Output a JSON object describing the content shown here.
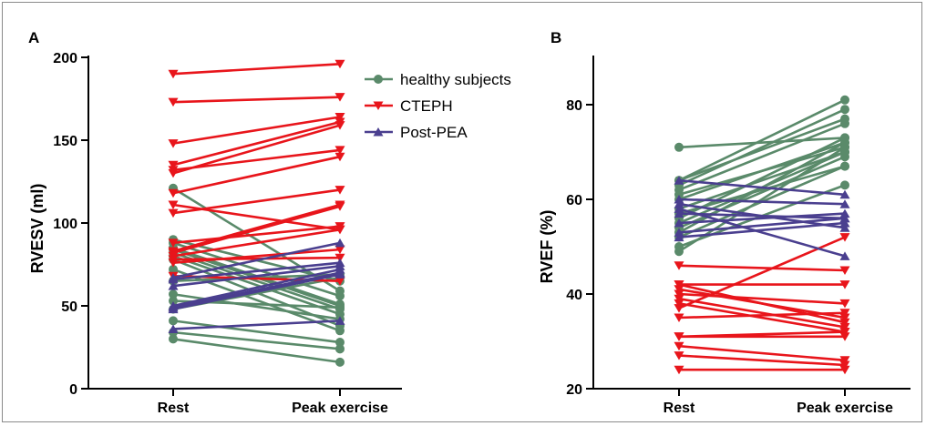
{
  "colors": {
    "healthy": "#5a8a6a",
    "cteph": "#e8151b",
    "post_pea": "#4a3f8f"
  },
  "legend": [
    {
      "label": "healthy subjects",
      "series": "healthy",
      "marker": "circle"
    },
    {
      "label": "CTEPH",
      "series": "cteph",
      "marker": "triangle-down"
    },
    {
      "label": "Post-PEA",
      "series": "post_pea",
      "marker": "triangle-up"
    }
  ],
  "chart_data": [
    {
      "panel": "A",
      "type": "line",
      "categories": [
        "Rest",
        "Peak exercise"
      ],
      "ylabel": "RVESV (ml)",
      "ylim": [
        0,
        200
      ],
      "yticks": [
        0,
        50,
        100,
        150,
        200
      ],
      "legend_position": "top-right",
      "series": [
        {
          "name": "healthy subjects",
          "key": "healthy",
          "lines": [
            [
              121,
              59
            ],
            [
              90,
              65
            ],
            [
              88,
              56
            ],
            [
              85,
              51
            ],
            [
              82,
              48
            ],
            [
              80,
              45
            ],
            [
              78,
              38
            ],
            [
              65,
              69
            ],
            [
              57,
              42
            ],
            [
              53,
              49
            ],
            [
              48,
              67
            ],
            [
              41,
              28
            ],
            [
              34,
              24
            ],
            [
              30,
              16
            ],
            [
              84,
              50
            ],
            [
              72,
              35
            ]
          ]
        },
        {
          "name": "CTEPH",
          "key": "cteph",
          "lines": [
            [
              190,
              196
            ],
            [
              173,
              176
            ],
            [
              148,
              164
            ],
            [
              135,
              161
            ],
            [
              132,
              144
            ],
            [
              130,
              159
            ],
            [
              118,
              140
            ],
            [
              111,
              96
            ],
            [
              106,
              120
            ],
            [
              88,
              98
            ],
            [
              83,
              111
            ],
            [
              82,
              110
            ],
            [
              80,
              96
            ],
            [
              78,
              79
            ],
            [
              76,
              84
            ],
            [
              68,
              65
            ]
          ]
        },
        {
          "name": "Post-PEA",
          "key": "post_pea",
          "lines": [
            [
              67,
              88
            ],
            [
              66,
              76
            ],
            [
              62,
              74
            ],
            [
              50,
              72
            ],
            [
              49,
              70
            ],
            [
              48,
              69
            ],
            [
              36,
              41
            ]
          ]
        }
      ]
    },
    {
      "panel": "B",
      "type": "line",
      "categories": [
        "Rest",
        "Peak exercise"
      ],
      "ylabel": "RVEF (%)",
      "ylim": [
        20,
        90
      ],
      "yticks": [
        20,
        40,
        60,
        80
      ],
      "series": [
        {
          "name": "healthy subjects",
          "key": "healthy",
          "lines": [
            [
              71,
              73
            ],
            [
              64,
              81
            ],
            [
              64,
              77
            ],
            [
              63,
              79
            ],
            [
              62,
              76
            ],
            [
              61,
              71
            ],
            [
              60,
              72
            ],
            [
              58,
              70
            ],
            [
              57,
              67
            ],
            [
              56,
              73
            ],
            [
              55,
              70
            ],
            [
              54,
              69
            ],
            [
              53,
              72
            ],
            [
              52,
              67
            ],
            [
              50,
              63
            ],
            [
              49,
              71
            ]
          ]
        },
        {
          "name": "CTEPH",
          "key": "cteph",
          "lines": [
            [
              46,
              45
            ],
            [
              42,
              34
            ],
            [
              42,
              42
            ],
            [
              41,
              35
            ],
            [
              40,
              38
            ],
            [
              39,
              33
            ],
            [
              38,
              32
            ],
            [
              37,
              52
            ],
            [
              35,
              36
            ],
            [
              31,
              32
            ],
            [
              31,
              31
            ],
            [
              29,
              26
            ],
            [
              27,
              25
            ],
            [
              24,
              24
            ]
          ]
        },
        {
          "name": "Post-PEA",
          "key": "post_pea",
          "lines": [
            [
              64,
              61
            ],
            [
              60,
              59
            ],
            [
              59,
              54
            ],
            [
              58,
              48
            ],
            [
              57,
              56
            ],
            [
              55,
              57
            ],
            [
              53,
              56
            ],
            [
              52,
              55
            ]
          ]
        }
      ]
    }
  ]
}
